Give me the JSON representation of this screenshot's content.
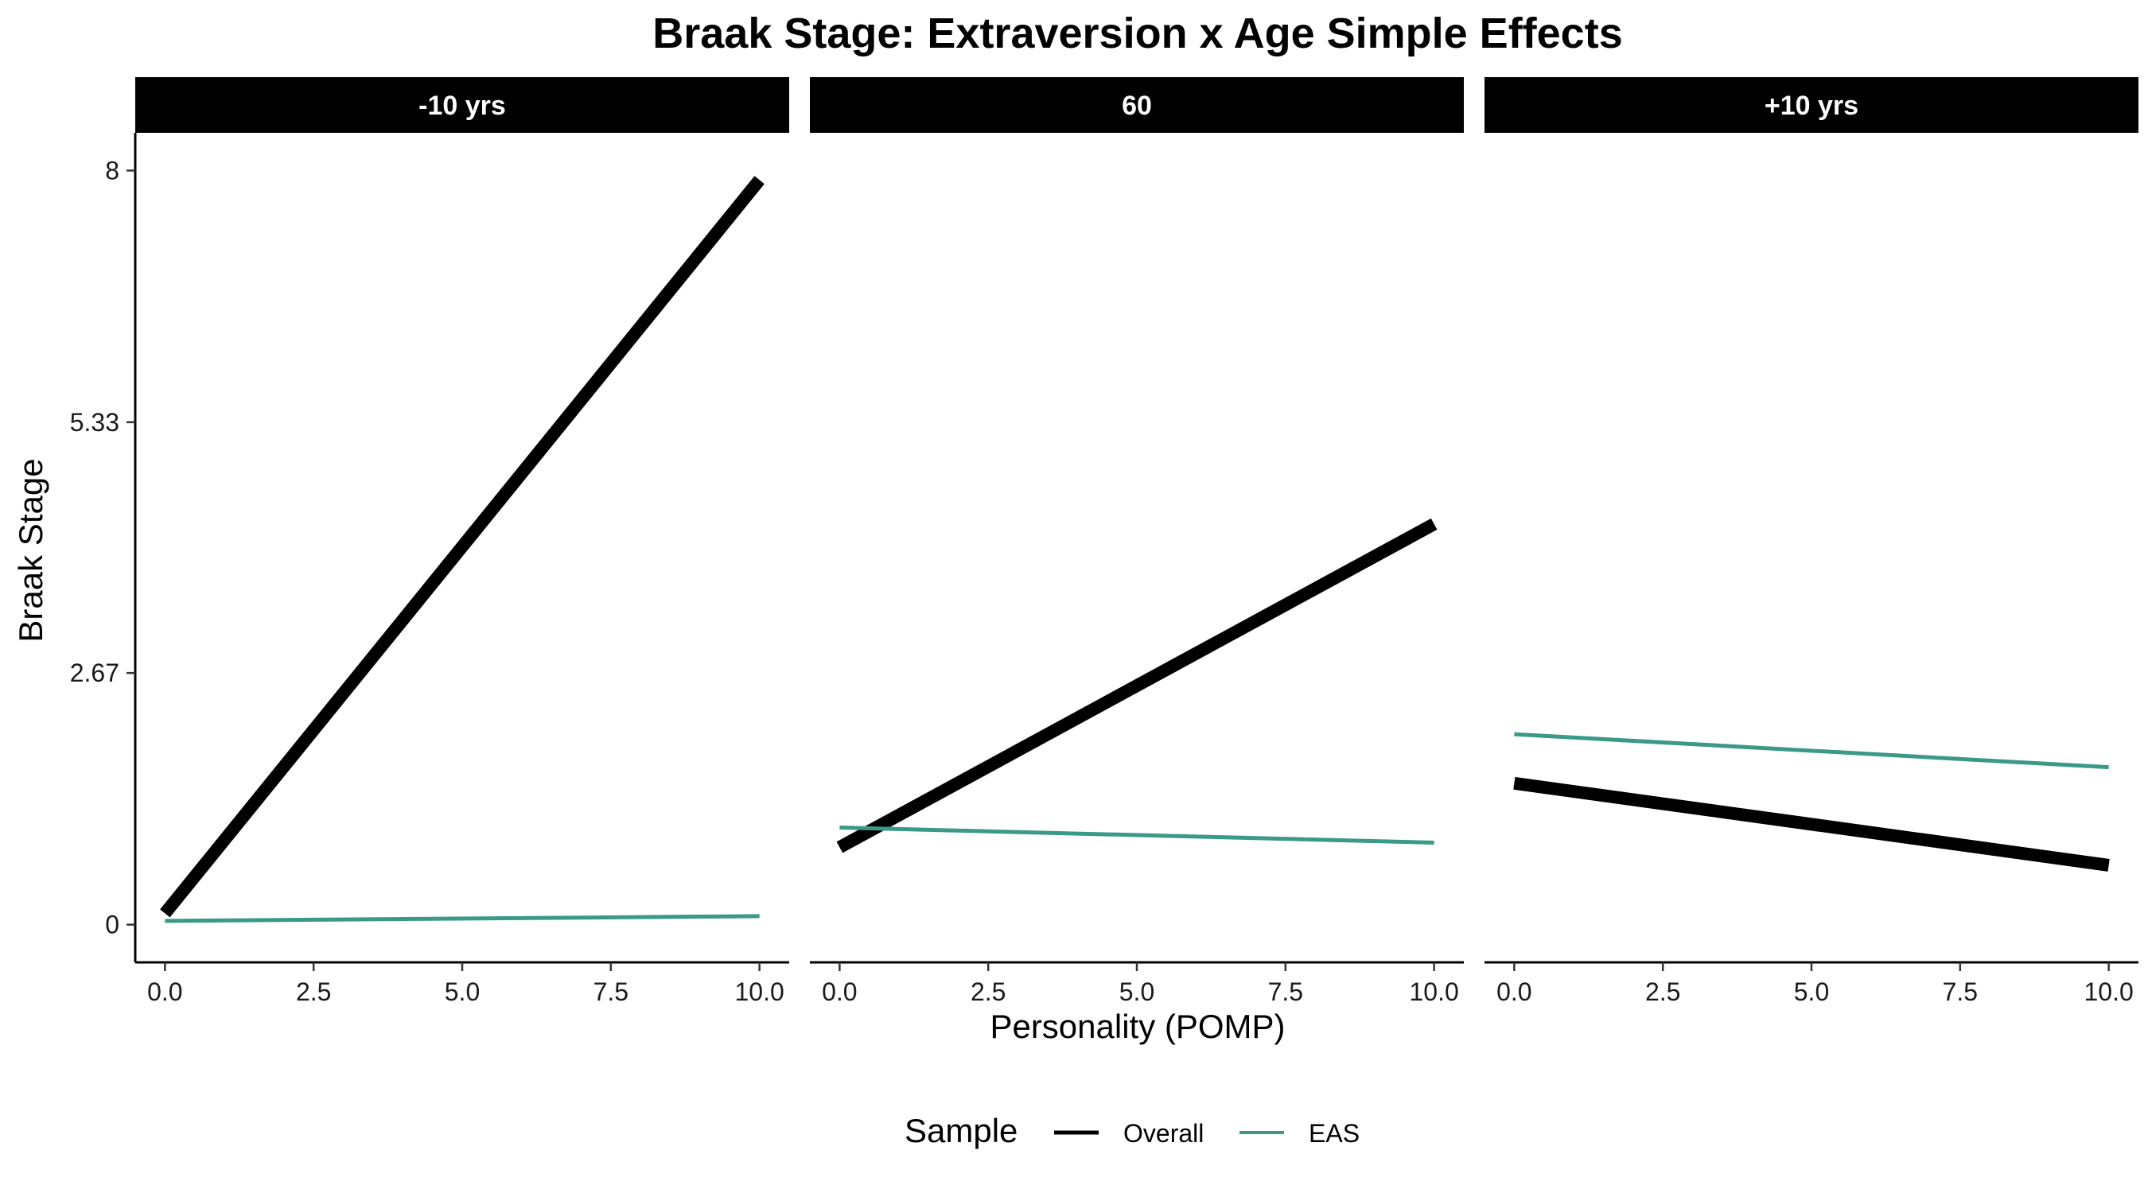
{
  "chart_data": {
    "type": "line",
    "title": "Braak Stage: Extraversion x Age Simple Effects",
    "xlabel": "Personality (POMP)",
    "ylabel": "Braak Stage",
    "xlim": [
      -0.5,
      10.5
    ],
    "ylim": [
      -0.4,
      8.4
    ],
    "xticks": [
      0,
      2.5,
      5,
      7.5,
      10
    ],
    "xtick_labels": [
      "0.0",
      "2.5",
      "5.0",
      "7.5",
      "10.0"
    ],
    "yticks": [
      0,
      2.67,
      5.33,
      8
    ],
    "ytick_labels": [
      "0",
      "2.67",
      "5.33",
      "8"
    ],
    "grid": false,
    "legend": {
      "title": "Sample",
      "position": "bottom",
      "entries": [
        {
          "label": "Overall",
          "color": "#000000"
        },
        {
          "label": "EAS",
          "color": "#3a9a86"
        }
      ]
    },
    "panels": [
      {
        "label": "-10 yrs",
        "series": [
          {
            "name": "Overall",
            "color": "#000000",
            "x": [
              0,
              10
            ],
            "y": [
              0.12,
              7.9
            ]
          },
          {
            "name": "EAS",
            "color": "#3a9a86",
            "x": [
              0,
              10
            ],
            "y": [
              0.04,
              0.09
            ]
          }
        ]
      },
      {
        "label": "60",
        "series": [
          {
            "name": "Overall",
            "color": "#000000",
            "x": [
              0,
              10
            ],
            "y": [
              0.82,
              4.25
            ]
          },
          {
            "name": "EAS",
            "color": "#3a9a86",
            "x": [
              0,
              10
            ],
            "y": [
              1.03,
              0.87
            ]
          }
        ]
      },
      {
        "label": "+10 yrs",
        "series": [
          {
            "name": "Overall",
            "color": "#000000",
            "x": [
              0,
              10
            ],
            "y": [
              1.5,
              0.63
            ]
          },
          {
            "name": "EAS",
            "color": "#3a9a86",
            "x": [
              0,
              10
            ],
            "y": [
              2.02,
              1.67
            ]
          }
        ]
      }
    ]
  }
}
